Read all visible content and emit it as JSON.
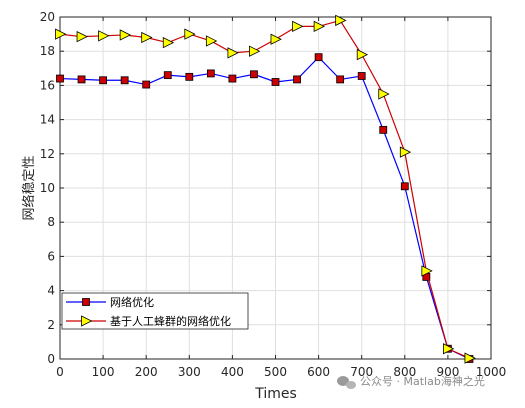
{
  "chart_data": {
    "type": "line",
    "xlabel": "Times",
    "ylabel": "网络稳定性",
    "xlim": [
      0,
      1000
    ],
    "ylim": [
      0,
      20
    ],
    "xticks": [
      0,
      100,
      200,
      300,
      400,
      500,
      600,
      700,
      800,
      900,
      1000
    ],
    "yticks": [
      0,
      2,
      4,
      6,
      8,
      10,
      12,
      14,
      16,
      18,
      20
    ],
    "grid": true,
    "legend_position": "bottom-left",
    "x": [
      0,
      50,
      100,
      150,
      200,
      250,
      300,
      350,
      400,
      450,
      500,
      550,
      600,
      650,
      700,
      750,
      800,
      850,
      900,
      950
    ],
    "series": [
      {
        "name": "网络优化",
        "color": "#0000ff",
        "marker": "square",
        "marker_color": "#cc0000",
        "values": [
          16.4,
          16.35,
          16.3,
          16.3,
          16.05,
          16.6,
          16.5,
          16.7,
          16.4,
          16.65,
          16.2,
          16.35,
          17.65,
          16.35,
          16.55,
          13.4,
          10.1,
          4.8,
          0.6,
          0.0
        ]
      },
      {
        "name": "基于人工蜂群的网络优化",
        "color": "#cc0000",
        "marker": "triangle-right",
        "marker_color": "#ffff00",
        "values": [
          19.0,
          18.85,
          18.9,
          18.95,
          18.8,
          18.5,
          19.0,
          18.6,
          17.9,
          18.0,
          18.7,
          19.45,
          19.45,
          19.8,
          17.8,
          15.5,
          12.1,
          5.15,
          0.6,
          0.05
        ]
      }
    ]
  },
  "watermark": {
    "icon": "wechat-icon",
    "text": "公众号 · Matlab海神之光"
  }
}
